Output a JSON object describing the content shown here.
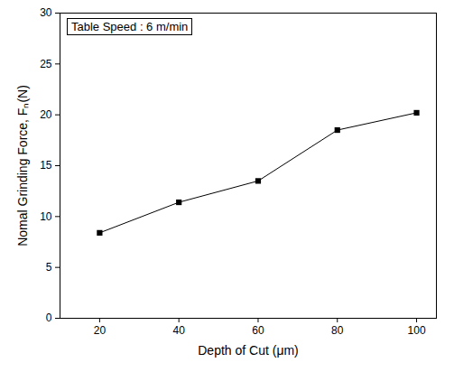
{
  "chart_data": {
    "type": "line",
    "x": [
      20,
      40,
      60,
      80,
      100
    ],
    "values": [
      8.4,
      11.4,
      13.5,
      18.5,
      20.2
    ],
    "xlabel": "Depth of Cut (μm)",
    "ylabel": "Nomal Grinding Force, Fₙ(N)",
    "annotation": "Table Speed : 6 m/min",
    "xlim": [
      10,
      105
    ],
    "xticks": [
      20,
      40,
      60,
      80,
      100
    ],
    "ylim": [
      0,
      30
    ],
    "yticks": [
      0,
      5,
      10,
      15,
      20,
      25,
      30
    ],
    "color": "#000000",
    "marker": "square",
    "line_style": "solid",
    "grid": false
  }
}
